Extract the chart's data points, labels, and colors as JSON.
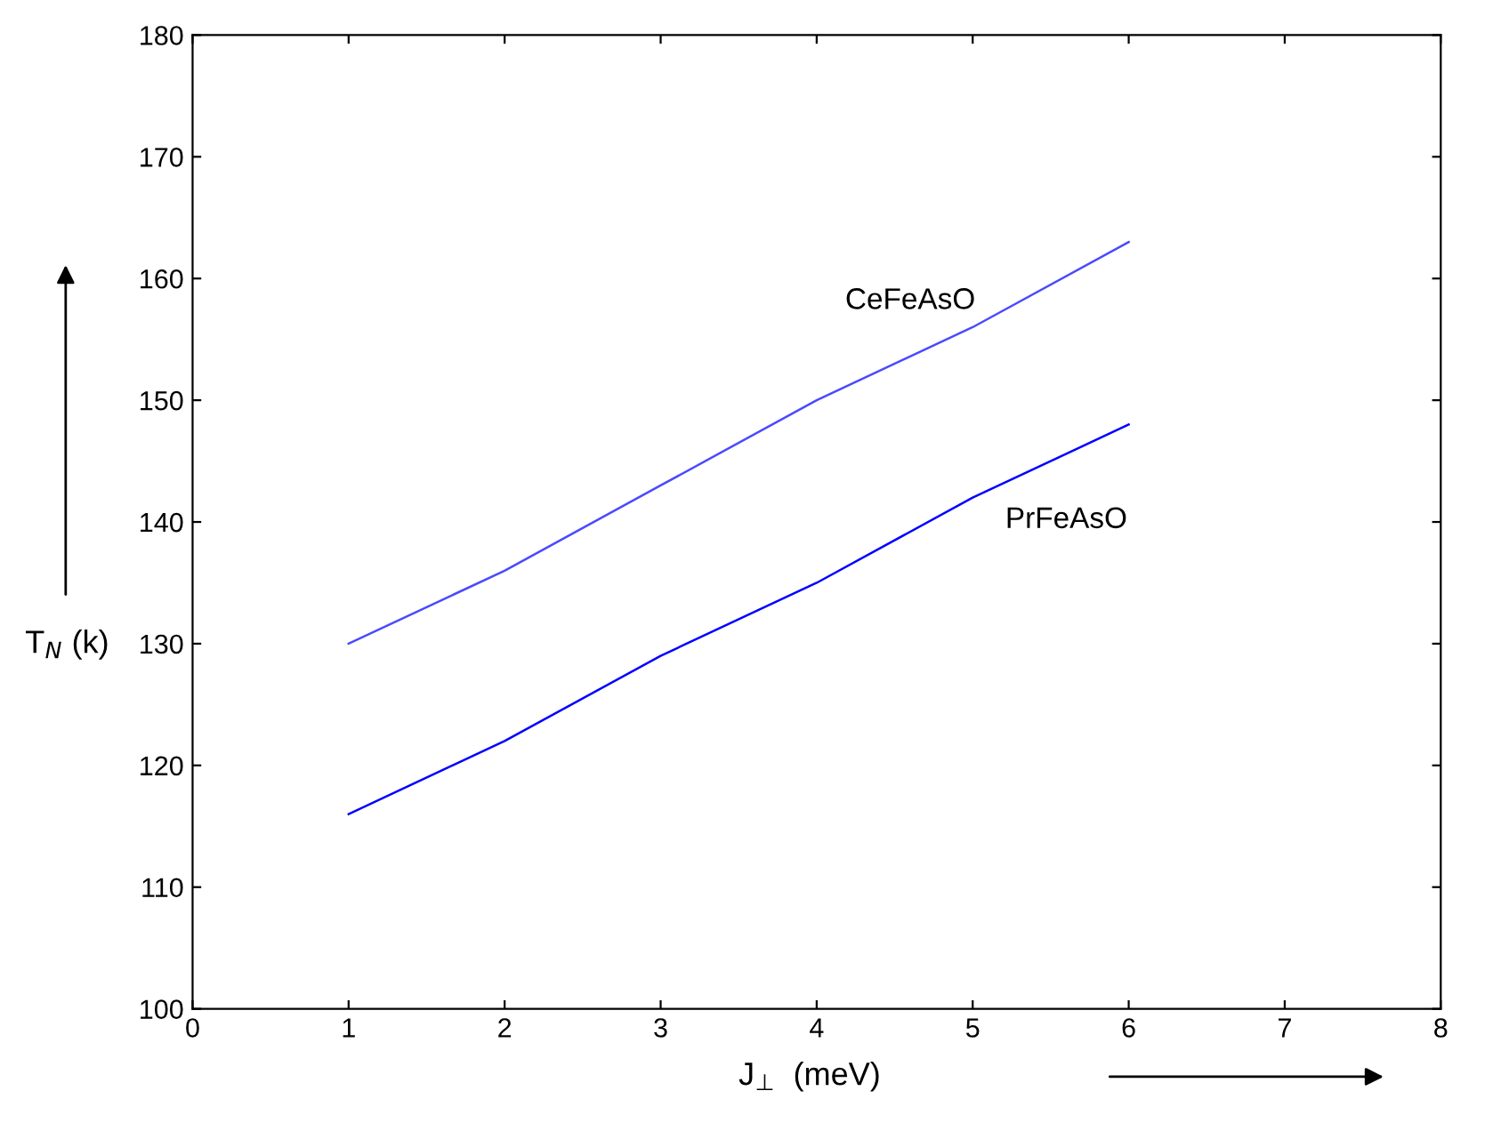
{
  "chart_data": {
    "type": "line",
    "xlabel": "J$_{⊥}$  (meV)",
    "ylabel": "T$_{N}$ (k)",
    "x": [
      1,
      2,
      3,
      4,
      5,
      6
    ],
    "series": [
      {
        "name": "CeFeAsO",
        "color": "#4a4aff",
        "values": [
          130,
          136,
          143,
          150,
          156,
          163
        ]
      },
      {
        "name": "PrFeAsO",
        "color": "#0000ff",
        "values": [
          116,
          122,
          129,
          135,
          142,
          148
        ]
      }
    ],
    "xlim": [
      0,
      8
    ],
    "xticks": [
      0,
      1,
      2,
      3,
      4,
      5,
      6,
      7,
      8
    ],
    "ylim": [
      100,
      180
    ],
    "yticks": [
      100,
      110,
      120,
      130,
      140,
      150,
      160,
      170,
      180
    ],
    "grid": false,
    "legend": false,
    "marker": "none",
    "line_style": "solid"
  }
}
